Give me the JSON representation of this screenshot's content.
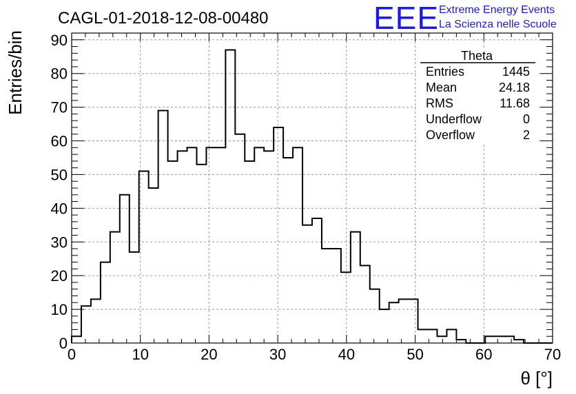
{
  "chart_data": {
    "type": "bar",
    "title": "CAGL-01-2018-12-08-00480",
    "xlabel": "θ [°]",
    "ylabel": "Entries/bin",
    "xlim": [
      0,
      70
    ],
    "ylim": [
      0,
      92
    ],
    "bin_width": 1.4,
    "x_ticks": [
      0,
      10,
      20,
      30,
      40,
      50,
      60,
      70
    ],
    "y_ticks": [
      0,
      10,
      20,
      30,
      40,
      50,
      60,
      70,
      80,
      90
    ],
    "grid": true,
    "values": [
      2,
      11,
      13,
      24,
      33,
      44,
      27,
      51,
      46,
      69,
      54,
      57,
      58,
      53,
      58,
      58,
      87,
      62,
      54,
      58,
      57,
      64,
      55,
      58,
      35,
      37,
      28,
      28,
      21,
      33,
      23,
      16,
      10,
      12,
      13,
      13,
      4,
      4,
      2,
      4,
      1,
      0,
      0,
      2,
      2,
      2,
      1,
      0,
      0,
      0
    ],
    "stats_box": {
      "title": "Theta",
      "rows": [
        {
          "label": "Entries",
          "value": "1445"
        },
        {
          "label": "Mean",
          "value": "24.18"
        },
        {
          "label": "RMS",
          "value": "11.68"
        },
        {
          "label": "Underflow",
          "value": "0"
        },
        {
          "label": "Overflow",
          "value": "2"
        }
      ]
    }
  },
  "logo": {
    "text": "EEE",
    "line1": "Extreme Energy Events",
    "line2": "La Scienza nelle Scuole",
    "color": "#1a1aee"
  },
  "colors": {
    "line": "#000000",
    "grid": "#9a9a9a",
    "logo": "#1a1aee"
  }
}
